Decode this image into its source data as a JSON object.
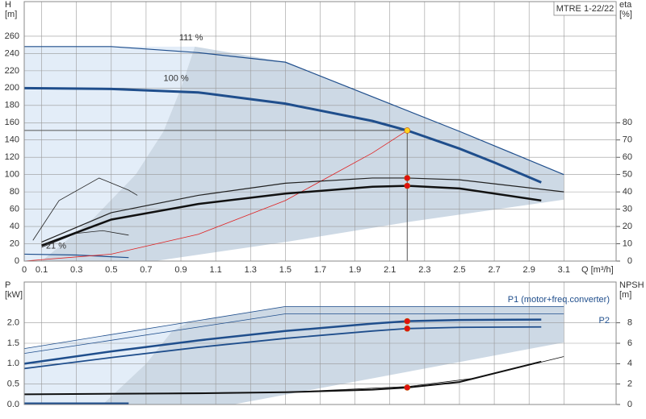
{
  "chart_data": [
    {
      "type": "line",
      "title": "MTRE 1-22/22",
      "ylabel": [
        "H",
        "[m]"
      ],
      "y2label": [
        "eta",
        "[%]"
      ],
      "xlabel": "Q [m³/h]",
      "xlim": [
        0,
        3.4
      ],
      "xticks": [
        0,
        0.1,
        0.3,
        0.5,
        0.7,
        0.9,
        1.1,
        1.3,
        1.5,
        1.7,
        1.9,
        2.1,
        2.3,
        2.5,
        2.7,
        2.9,
        3.1
      ],
      "ylim": [
        0,
        300
      ],
      "yticks": [
        0,
        20,
        40,
        60,
        80,
        100,
        120,
        140,
        160,
        180,
        200,
        220,
        240,
        260
      ],
      "y2lim": [
        0,
        150
      ],
      "y2ticks": [
        0,
        10,
        20,
        30,
        40,
        50,
        60,
        70,
        80
      ],
      "grid": true,
      "xtick_labels": true,
      "duty_lines": true,
      "areas": [
        {
          "color": "#e3edf8",
          "x": [
            0,
            0.1,
            0.4,
            0.64,
            0.8,
            0.9,
            0.98,
            0
          ],
          "y": [
            0,
            0,
            50,
            100,
            150,
            200,
            248,
            248
          ]
        },
        {
          "color": "#cdd9e5",
          "x": [
            0.98,
            1.5,
            2,
            2.5,
            3.1,
            3.1,
            2.2,
            1.5,
            0.75,
            0.1,
            0.4,
            0.64,
            0.8,
            0.9
          ],
          "y": [
            248,
            230,
            190,
            150,
            100,
            71,
            45,
            22,
            0,
            0,
            50,
            100,
            150,
            200
          ]
        }
      ],
      "series": [
        {
          "color": "#1f4e8c",
          "width": 1.2,
          "x": [
            0,
            0.5,
            1,
            1.5,
            2,
            2.5,
            3.1
          ],
          "values": [
            248,
            248,
            241,
            230,
            190,
            150,
            100
          ]
        },
        {
          "color": "#1f4e8c",
          "width": 3,
          "x": [
            0,
            0.5,
            1,
            1.5,
            2,
            2.2,
            2.5,
            2.7,
            2.97
          ],
          "values": [
            200,
            199,
            195,
            182,
            162,
            151,
            130,
            114,
            91
          ]
        },
        {
          "color": "#1f4e8c",
          "width": 1.2,
          "x": [
            0,
            0.3,
            0.6
          ],
          "values": [
            8,
            7,
            4
          ]
        },
        {
          "color": "#e02020",
          "width": 0.8,
          "x": [
            0,
            0.5,
            1,
            1.5,
            2,
            2.2
          ],
          "values": [
            0,
            8,
            31,
            70,
            125,
            151
          ]
        },
        {
          "color": "#222222",
          "width": 0.8,
          "axis": "y2",
          "x": [
            0.05,
            0.2,
            0.43,
            0.6,
            0.65
          ],
          "values": [
            12,
            35,
            48,
            41,
            38
          ]
        },
        {
          "color": "#222222",
          "width": 0.8,
          "axis": "y2",
          "x": [
            0.1,
            0.3,
            0.45,
            0.6
          ],
          "values": [
            8,
            16,
            17.6,
            15
          ]
        },
        {
          "color": "#222222",
          "width": 1.2,
          "axis": "y2",
          "x": [
            0.1,
            0.5,
            1,
            1.5,
            2,
            2.2,
            2.5,
            3.1
          ],
          "values": [
            11,
            28,
            38,
            45,
            48,
            48,
            47,
            40
          ]
        },
        {
          "color": "#111111",
          "width": 2.5,
          "axis": "y2",
          "x": [
            0.1,
            0.5,
            1,
            1.5,
            2,
            2.2,
            2.5,
            2.97
          ],
          "values": [
            9,
            24,
            33,
            39,
            43,
            43.5,
            42,
            35
          ]
        }
      ],
      "markers": [
        {
          "x": 2.2,
          "y": 151,
          "color": "#ffd21f"
        },
        {
          "x": 2.2,
          "y": 48,
          "axis": "y2",
          "color": "#e01010"
        },
        {
          "x": 2.2,
          "y": 43.5,
          "axis": "y2",
          "color": "#e01010"
        }
      ],
      "annotations": [
        {
          "text": "111 %",
          "x": 0.89,
          "y": 258
        },
        {
          "text": "100 %",
          "x": 0.8,
          "y": 211
        },
        {
          "text": "21 %",
          "x": 0.125,
          "y": 17
        }
      ]
    },
    {
      "type": "line",
      "ylabel": [
        "P",
        "[kW]"
      ],
      "y2label": [
        "NPSH",
        "[m]"
      ],
      "xlim": [
        0,
        3.4
      ],
      "xticks": [
        0,
        0.1,
        0.3,
        0.5,
        0.7,
        0.9,
        1.1,
        1.3,
        1.5,
        1.7,
        1.9,
        2.1,
        2.3,
        2.5,
        2.7,
        2.9,
        3.1
      ],
      "ylim": [
        0,
        3
      ],
      "yticks": [
        {
          "value": 0,
          "label": "0.0"
        },
        0.5,
        {
          "value": 1,
          "label": "1.0"
        },
        1.5,
        {
          "value": 2,
          "label": "2.0"
        }
      ],
      "y2lim": [
        0,
        12
      ],
      "y2ticks": [
        0,
        2,
        4,
        6,
        8
      ],
      "grid": true,
      "xtick_labels": false,
      "duty_lines": false,
      "areas": [
        {
          "color": "#e3edf8",
          "x": [
            0,
            0.45,
            0.7,
            0.85,
            0.95,
            0
          ],
          "y": [
            0,
            0,
            1,
            1.8,
            2.02,
            1.37
          ]
        },
        {
          "color": "#cdd9e5",
          "x": [
            0.95,
            1.5,
            3.1,
            3.1,
            2.2,
            1.2,
            0.45,
            0.7,
            0.85
          ],
          "y": [
            2.02,
            2.4,
            2.4,
            1.52,
            0.8,
            0,
            0,
            1,
            1.8
          ]
        }
      ],
      "series": [
        {
          "name": "P1 (motor+freq.converter)",
          "color": "#1f4e8c",
          "width": 2.5,
          "x": [
            0,
            0.5,
            1,
            1.5,
            2,
            2.2,
            2.5,
            2.97
          ],
          "values": [
            1,
            1.3,
            1.57,
            1.8,
            1.98,
            2.04,
            2.07,
            2.08
          ]
        },
        {
          "name": "P2",
          "color": "#1f4e8c",
          "width": 1.8,
          "x": [
            0,
            0.5,
            1,
            1.5,
            2,
            2.2,
            2.5,
            2.97
          ],
          "values": [
            0.88,
            1.15,
            1.4,
            1.62,
            1.8,
            1.86,
            1.89,
            1.9
          ]
        },
        {
          "color": "#1f4e8c",
          "width": 0.8,
          "x": [
            0,
            1.5,
            3.1
          ],
          "values": [
            1.37,
            2.4,
            2.4
          ]
        },
        {
          "color": "#1f4e8c",
          "width": 0.8,
          "x": [
            0,
            1.5,
            3.1
          ],
          "values": [
            1.25,
            2.22,
            2.22
          ]
        },
        {
          "color": "#1f4e8c",
          "width": 2,
          "x": [
            0,
            0.6
          ],
          "values": [
            0.03,
            0.03
          ]
        },
        {
          "color": "#111111",
          "width": 2,
          "axis": "y2",
          "x": [
            0,
            1,
            1.5,
            2,
            2.2,
            2.5,
            2.97
          ],
          "values": [
            1,
            1.1,
            1.2,
            1.45,
            1.66,
            2.2,
            4.2
          ]
        },
        {
          "color": "#111111",
          "width": 0.8,
          "axis": "y2",
          "x": [
            0,
            1.5,
            2.2,
            2.6,
            3.1
          ],
          "values": [
            1,
            1.2,
            1.75,
            2.6,
            4.7
          ]
        }
      ],
      "markers": [
        {
          "x": 2.2,
          "y": 2.04,
          "color": "#e01010"
        },
        {
          "x": 2.2,
          "y": 1.86,
          "color": "#e01010"
        },
        {
          "x": 2.2,
          "y": 1.66,
          "axis": "y2",
          "color": "#e01010"
        }
      ]
    }
  ]
}
